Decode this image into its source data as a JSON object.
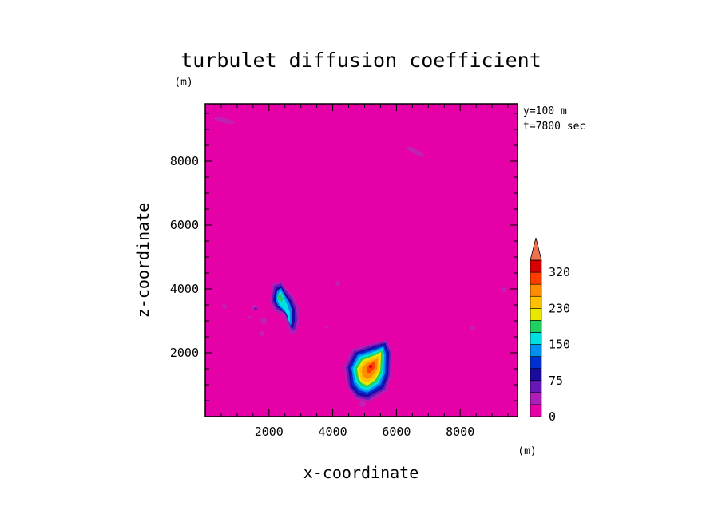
{
  "chart_data": {
    "type": "heatmap",
    "title": "turbulet diffusion coefficient",
    "xlabel": "x-coordinate",
    "ylabel": "z-coordinate",
    "x_unit": "(m)",
    "y_unit": "(m)",
    "annotations": [
      "y=100 m",
      "t=7800 sec"
    ],
    "xlim": [
      0,
      9800
    ],
    "ylim": [
      0,
      9800
    ],
    "x_ticks": [
      2000,
      4000,
      6000,
      8000
    ],
    "y_ticks": [
      2000,
      4000,
      6000,
      8000
    ],
    "colorbar": {
      "levels": [
        0,
        25,
        50,
        75,
        100,
        125,
        150,
        175,
        200,
        230,
        260,
        290,
        320
      ],
      "tick_labels": [
        "0",
        "75",
        "150",
        "230",
        "320"
      ],
      "tick_values": [
        0,
        75,
        150,
        230,
        320
      ],
      "colors": [
        "#e600a8",
        "#ad1fb8",
        "#6818b8",
        "#1a0a9e",
        "#0030d0",
        "#0090f0",
        "#00e0e0",
        "#20d060",
        "#e8e800",
        "#ffc000",
        "#ff8c00",
        "#ff3c00",
        "#d80000"
      ],
      "extend_max_color": "#f07050"
    },
    "features": [
      {
        "name": "blob-main",
        "center": [
          5200,
          1700
        ],
        "peak": 250
      },
      {
        "name": "blob-left",
        "center": [
          2600,
          3700
        ],
        "peak": 140
      }
    ]
  }
}
